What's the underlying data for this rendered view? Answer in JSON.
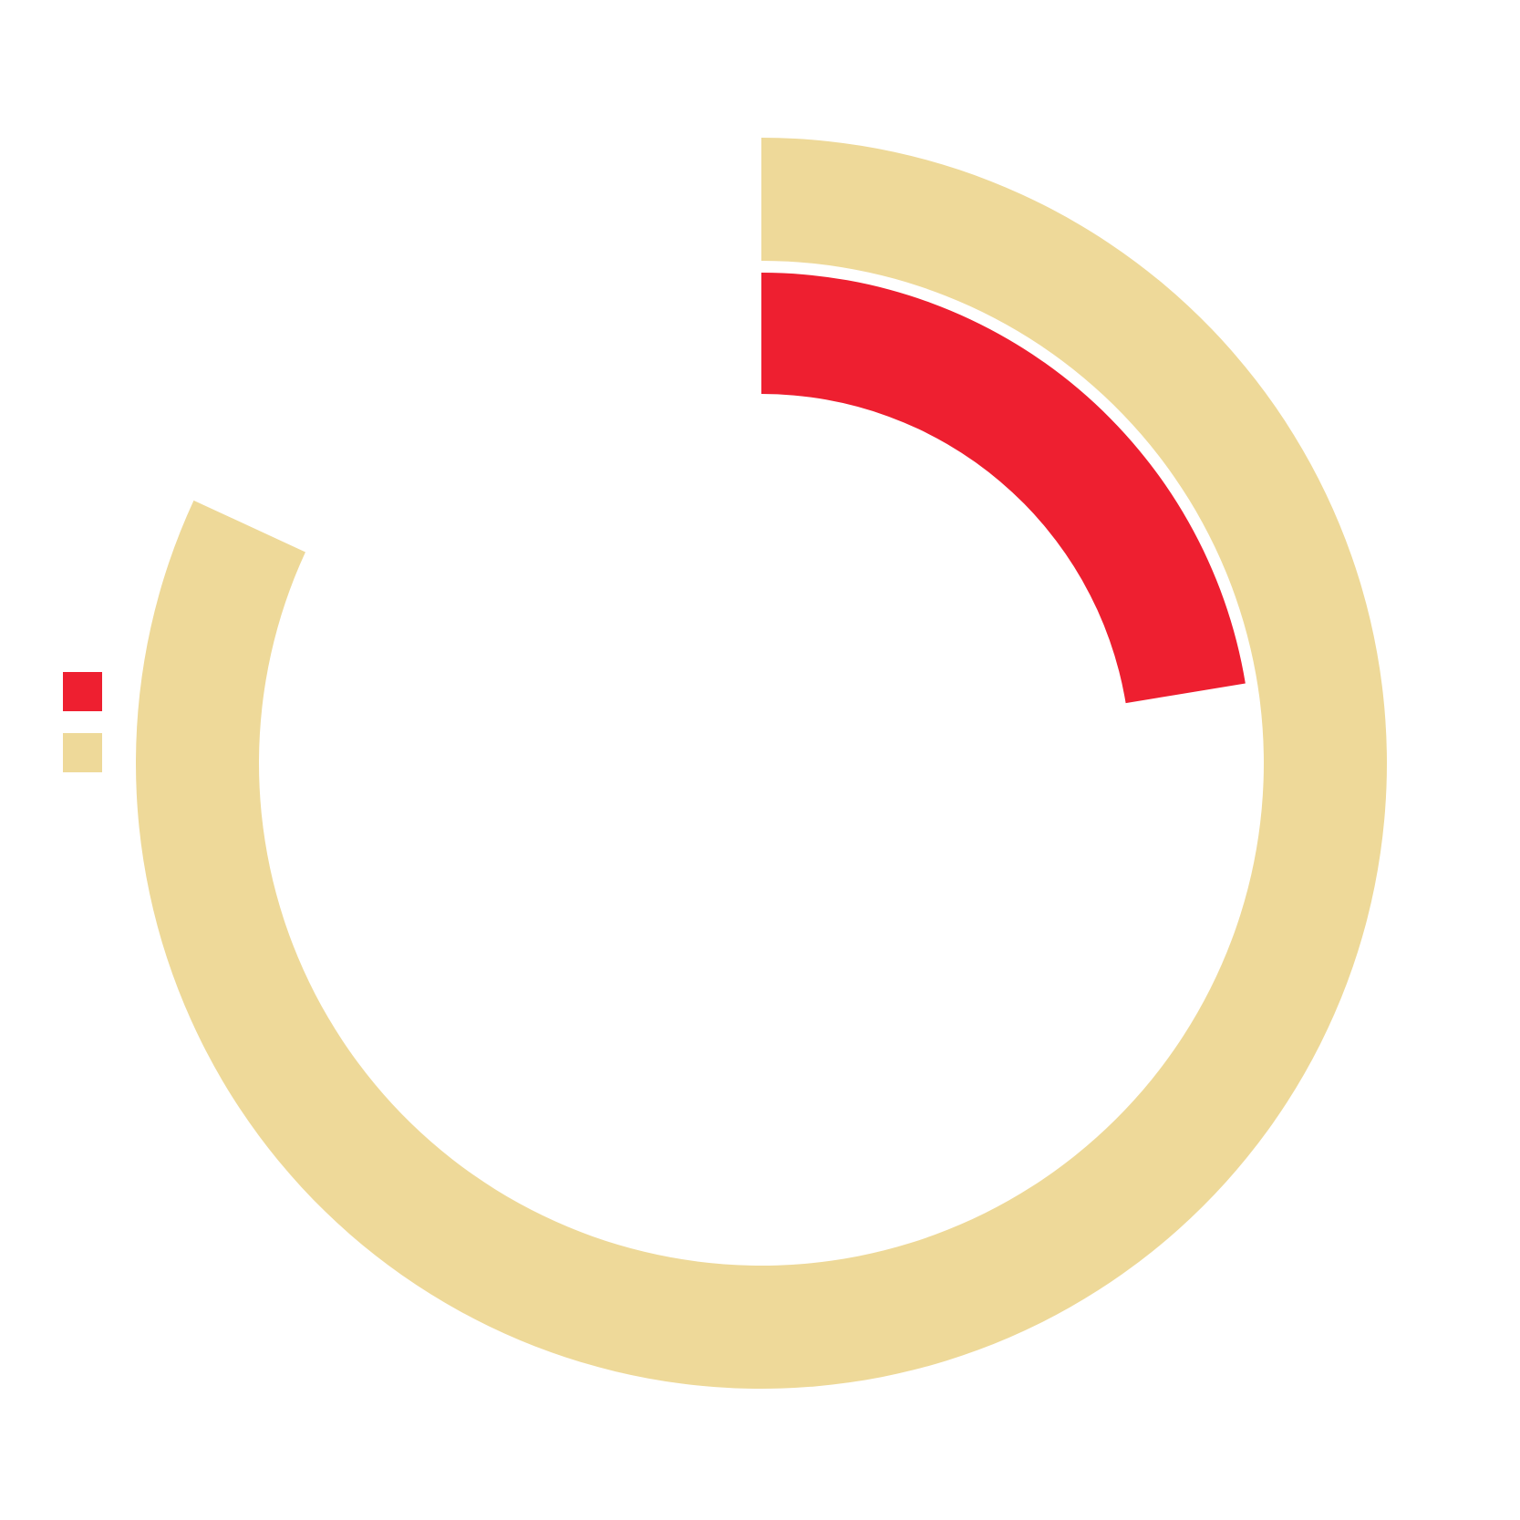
{
  "chart_data": {
    "type": "radial-bar",
    "title": "",
    "value_max": 100,
    "series": [
      {
        "name": "",
        "value": 22.4,
        "color": "#ee1f30"
      },
      {
        "name": "",
        "value": 81.9,
        "color": "#eed999"
      }
    ],
    "legend": {
      "position": "left"
    }
  }
}
